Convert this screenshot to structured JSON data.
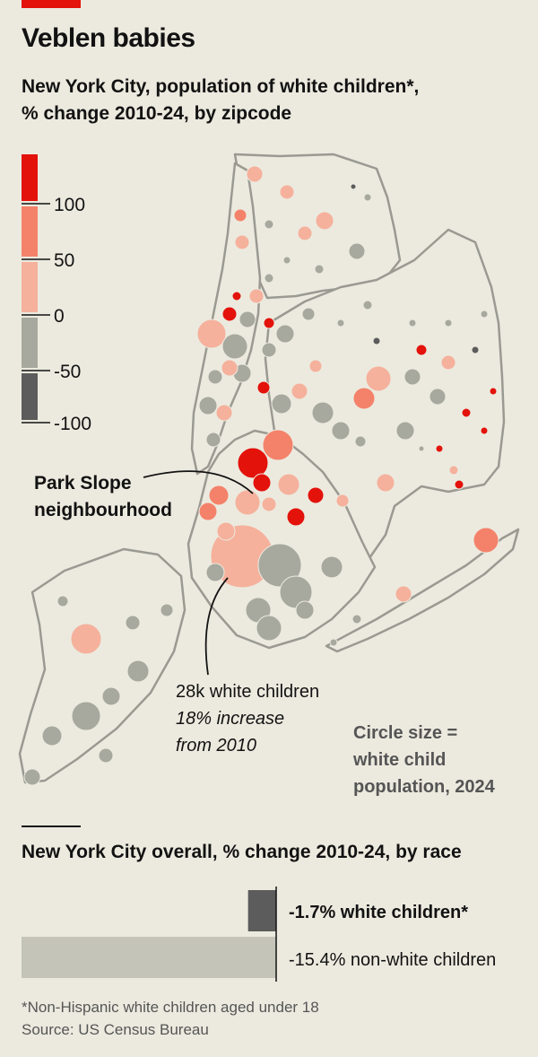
{
  "header": {
    "title": "Veblen babies",
    "subtitle_line1": "New York City, population of white children*,",
    "subtitle_line2": "% change 2010-24, by zipcode"
  },
  "colors": {
    "accent": "#e3120b",
    "bin_100_plus": "#e3120b",
    "bin_50_100": "#f4826a",
    "bin_0_50": "#f5b19c",
    "bin_neg50_0": "#a7a89e",
    "bin_neg100_neg50": "#5c5c5c",
    "white_bar": "#5c5c5c",
    "nonwhite_bar": "#c4c4b8"
  },
  "legend": {
    "ticks": [
      "100",
      "50",
      "0",
      "-50",
      "-100"
    ]
  },
  "annotations": {
    "park_slope_line1": "Park Slope",
    "park_slope_line2": "neighbourhood",
    "callout_line1": "28k white children",
    "callout_line2": "18% increase",
    "callout_line3": "from 2010",
    "size_note_line1": "Circle size =",
    "size_note_line2": "white child",
    "size_note_line3": "population, 2024"
  },
  "chart_data": [
    {
      "type": "scatter",
      "encoding": "choropleth bubble map; colour = % change 2010-24, size = white child population 2024",
      "color_bins": [
        ">100",
        "50 to 100",
        "0 to 50",
        "-50 to 0",
        "-100 to -50"
      ],
      "highlight": {
        "label": "Park Slope neighbourhood",
        "population_2024": 28000,
        "pct_change": 18
      }
    },
    {
      "type": "bar",
      "title": "New York City overall, % change 2010-24, by race",
      "categories": [
        "white children*",
        "non-white children"
      ],
      "values": [
        -1.7,
        -15.4
      ],
      "labels": [
        "-1.7% white children*",
        "-15.4% non-white children"
      ],
      "xlim": [
        -15.4,
        0
      ]
    }
  ],
  "footer": {
    "note": "*Non-Hispanic white children aged under 18",
    "source": "Source: US Census Bureau"
  }
}
